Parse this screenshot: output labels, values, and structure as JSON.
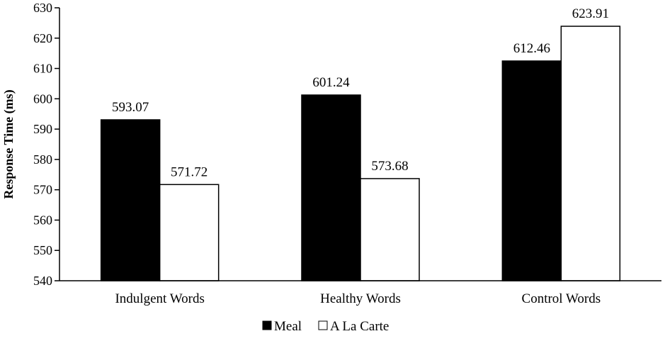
{
  "chart_data": {
    "type": "bar",
    "categories": [
      "Indulgent Words",
      "Healthy Words",
      "Control Words"
    ],
    "series": [
      {
        "name": "Meal",
        "values": [
          593.07,
          601.24,
          612.46
        ],
        "color": "#000000"
      },
      {
        "name": "A La Carte",
        "values": [
          571.72,
          573.68,
          623.91
        ],
        "color": "#ffffff"
      }
    ],
    "value_labels": [
      [
        "593.07",
        "601.24",
        "612.46"
      ],
      [
        "571.72",
        "573.68",
        "623.91"
      ]
    ],
    "ylabel": "Response Time (ms)",
    "ylim": [
      540,
      630
    ],
    "yticks": [
      540,
      550,
      560,
      570,
      580,
      590,
      600,
      610,
      620,
      630
    ],
    "grid": false,
    "legend_position": "bottom"
  }
}
